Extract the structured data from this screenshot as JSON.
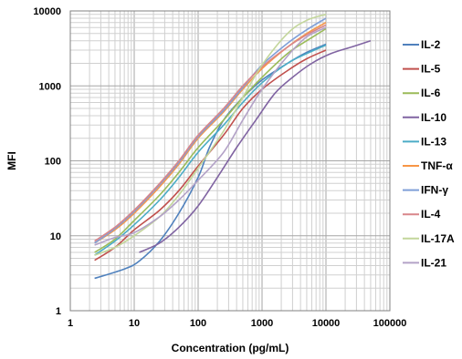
{
  "chart_data": {
    "type": "line",
    "title": "",
    "xlabel": "Concentration (pg/mL)",
    "ylabel": "MFI",
    "x_scale": "log",
    "y_scale": "log",
    "xlim": [
      1,
      100000
    ],
    "ylim": [
      1,
      10000
    ],
    "x_tick_labels": [
      "1",
      "10",
      "100",
      "1000",
      "10000",
      "100000"
    ],
    "y_tick_labels": [
      "1",
      "10",
      "100",
      "1000",
      "10000"
    ],
    "grid": true,
    "legend_position": "right",
    "series": [
      {
        "name": "IL-2",
        "color": "#4F81BD",
        "points": [
          [
            2.4,
            2.7
          ],
          [
            7,
            3.6
          ],
          [
            12,
            4.6
          ],
          [
            25,
            8.5
          ],
          [
            50,
            20
          ],
          [
            100,
            60
          ],
          [
            150,
            150
          ],
          [
            250,
            350
          ],
          [
            500,
            700
          ],
          [
            1000,
            1200
          ],
          [
            2500,
            2000
          ],
          [
            5000,
            2800
          ],
          [
            10000,
            3600
          ]
        ]
      },
      {
        "name": "IL-5",
        "color": "#C0504D",
        "points": [
          [
            2.4,
            4.7
          ],
          [
            5,
            7
          ],
          [
            10,
            12
          ],
          [
            25,
            22
          ],
          [
            50,
            40
          ],
          [
            100,
            85
          ],
          [
            250,
            220
          ],
          [
            500,
            500
          ],
          [
            1000,
            900
          ],
          [
            2500,
            1600
          ],
          [
            5000,
            2300
          ],
          [
            10000,
            3000
          ]
        ]
      },
      {
        "name": "IL-6",
        "color": "#9BBB59",
        "points": [
          [
            2.4,
            6
          ],
          [
            5,
            9
          ],
          [
            10,
            16
          ],
          [
            25,
            35
          ],
          [
            50,
            70
          ],
          [
            100,
            150
          ],
          [
            250,
            350
          ],
          [
            500,
            700
          ],
          [
            1000,
            1300
          ],
          [
            2500,
            2700
          ],
          [
            5000,
            4000
          ],
          [
            10000,
            5800
          ]
        ]
      },
      {
        "name": "IL-10",
        "color": "#8064A2",
        "points": [
          [
            12,
            6
          ],
          [
            25,
            8
          ],
          [
            50,
            13
          ],
          [
            100,
            25
          ],
          [
            200,
            60
          ],
          [
            400,
            150
          ],
          [
            800,
            350
          ],
          [
            1600,
            800
          ],
          [
            3000,
            1300
          ],
          [
            6000,
            2000
          ],
          [
            12000,
            2700
          ],
          [
            25000,
            3300
          ],
          [
            50000,
            4000
          ]
        ]
      },
      {
        "name": "IL-13",
        "color": "#4BACC6",
        "points": [
          [
            2.4,
            5.5
          ],
          [
            5,
            8.5
          ],
          [
            10,
            14
          ],
          [
            25,
            30
          ],
          [
            50,
            60
          ],
          [
            100,
            130
          ],
          [
            250,
            300
          ],
          [
            500,
            600
          ],
          [
            1000,
            1100
          ],
          [
            2500,
            2000
          ],
          [
            5000,
            2700
          ],
          [
            10000,
            3500
          ]
        ]
      },
      {
        "name": "TNF-α",
        "color": "#F79646",
        "points": [
          [
            2.4,
            8
          ],
          [
            5,
            12
          ],
          [
            10,
            20
          ],
          [
            25,
            45
          ],
          [
            50,
            90
          ],
          [
            100,
            200
          ],
          [
            250,
            450
          ],
          [
            500,
            900
          ],
          [
            1000,
            1700
          ],
          [
            2500,
            3300
          ],
          [
            5000,
            5000
          ],
          [
            10000,
            7000
          ]
        ]
      },
      {
        "name": "IFN-γ",
        "color": "#7F9FD8",
        "points": [
          [
            2.4,
            8
          ],
          [
            5,
            12.5
          ],
          [
            10,
            21
          ],
          [
            25,
            48
          ],
          [
            50,
            95
          ],
          [
            100,
            210
          ],
          [
            250,
            470
          ],
          [
            500,
            950
          ],
          [
            1000,
            1900
          ],
          [
            2500,
            3700
          ],
          [
            5000,
            5600
          ],
          [
            10000,
            8000
          ]
        ]
      },
      {
        "name": "IL-4",
        "color": "#D9868A",
        "points": [
          [
            2.4,
            8.5
          ],
          [
            5,
            13
          ],
          [
            10,
            22
          ],
          [
            25,
            50
          ],
          [
            50,
            100
          ],
          [
            100,
            220
          ],
          [
            250,
            500
          ],
          [
            500,
            1000
          ],
          [
            1000,
            1800
          ],
          [
            2500,
            3300
          ],
          [
            5000,
            4800
          ],
          [
            10000,
            6500
          ]
        ]
      },
      {
        "name": "IL-17A",
        "color": "#C3D69B",
        "points": [
          [
            2.4,
            5.5
          ],
          [
            5,
            7
          ],
          [
            10,
            10
          ],
          [
            25,
            18
          ],
          [
            50,
            35
          ],
          [
            100,
            80
          ],
          [
            250,
            250
          ],
          [
            500,
            700
          ],
          [
            1000,
            1900
          ],
          [
            2500,
            5000
          ],
          [
            5000,
            7500
          ],
          [
            10000,
            9000
          ]
        ]
      },
      {
        "name": "IL-21",
        "color": "#B3A2C7",
        "points": [
          [
            2.4,
            7.5
          ],
          [
            5,
            9.5
          ],
          [
            10,
            11
          ],
          [
            25,
            18
          ],
          [
            50,
            30
          ],
          [
            100,
            55
          ],
          [
            250,
            130
          ],
          [
            500,
            350
          ],
          [
            1000,
            900
          ],
          [
            2500,
            2500
          ],
          [
            5000,
            4500
          ],
          [
            10000,
            6000
          ]
        ]
      }
    ]
  }
}
